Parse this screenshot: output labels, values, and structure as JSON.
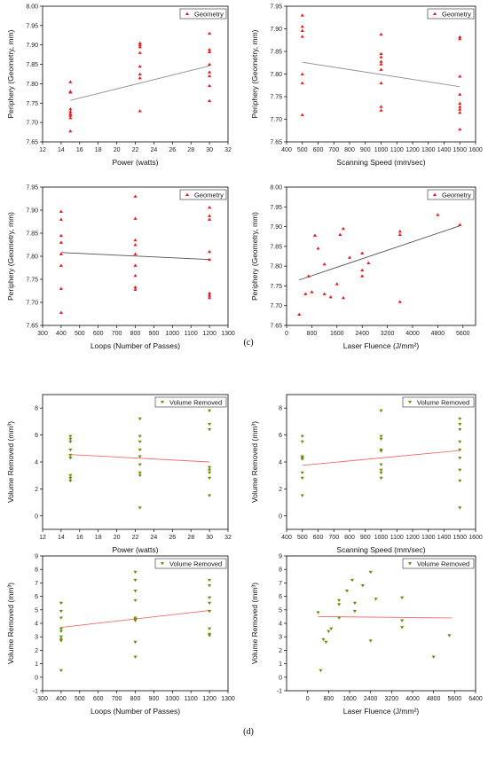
{
  "panel_labels": [
    "(c)",
    "(d)"
  ],
  "chart_data": [
    {
      "type": "scatter",
      "panel": "c",
      "xlabel": "Power (watts)",
      "ylabel": "Periphery (Geometry, mm)",
      "xlim": [
        12,
        32
      ],
      "ylim": [
        7.65,
        8.0
      ],
      "xticks": [
        12,
        14,
        16,
        18,
        20,
        22,
        24,
        26,
        28,
        30,
        32
      ],
      "yticks": [
        7.65,
        7.7,
        7.75,
        7.8,
        7.85,
        7.9,
        7.95,
        8.0
      ],
      "ytick_decimals": 2,
      "series": [
        {
          "name": "Geometry",
          "color": "#e8191c",
          "marker": "triangle-up",
          "x": [
            15,
            15,
            15,
            15,
            15,
            15,
            15,
            15,
            15,
            22.5,
            22.5,
            22.5,
            22.5,
            22.5,
            22.5,
            22.5,
            22.5,
            30,
            30,
            30,
            30,
            30,
            30,
            30,
            30
          ],
          "y": [
            7.805,
            7.78,
            7.778,
            7.735,
            7.728,
            7.722,
            7.718,
            7.712,
            7.678,
            7.905,
            7.9,
            7.895,
            7.88,
            7.845,
            7.825,
            7.815,
            7.73,
            7.93,
            7.888,
            7.882,
            7.85,
            7.83,
            7.82,
            7.795,
            7.756
          ]
        }
      ],
      "trendline": {
        "x": [
          15,
          30
        ],
        "y": [
          7.757,
          7.846
        ],
        "color": "#909090"
      },
      "legend": "top-right"
    },
    {
      "type": "scatter",
      "panel": "c",
      "xlabel": "Scanning Speed (mm/sec)",
      "ylabel": "Periphery (Geometry, mm)",
      "xlim": [
        400,
        1600
      ],
      "ylim": [
        7.65,
        7.95
      ],
      "xticks": [
        400,
        500,
        600,
        700,
        800,
        900,
        1000,
        1100,
        1200,
        1300,
        1400,
        1500,
        1600
      ],
      "yticks": [
        7.65,
        7.7,
        7.75,
        7.8,
        7.85,
        7.9,
        7.95
      ],
      "ytick_decimals": 2,
      "series": [
        {
          "name": "Geometry",
          "color": "#e8191c",
          "marker": "triangle-up",
          "x": [
            500,
            500,
            500,
            500,
            500,
            500,
            500,
            1000,
            1000,
            1000,
            1000,
            1000,
            1000,
            1000,
            1000,
            1000,
            1500,
            1500,
            1500,
            1500,
            1500,
            1500,
            1500,
            1500,
            1500
          ],
          "y": [
            7.93,
            7.905,
            7.896,
            7.883,
            7.8,
            7.78,
            7.71,
            7.888,
            7.845,
            7.838,
            7.828,
            7.822,
            7.81,
            7.78,
            7.728,
            7.72,
            7.882,
            7.878,
            7.795,
            7.755,
            7.735,
            7.728,
            7.722,
            7.715,
            7.678
          ]
        }
      ],
      "trendline": {
        "x": [
          500,
          1500
        ],
        "y": [
          7.826,
          7.772
        ],
        "color": "#909090"
      },
      "legend": "top-right"
    },
    {
      "type": "scatter",
      "panel": "c",
      "xlabel": "Loops (Number of Passes)",
      "ylabel": "Periphery (Geometry, mm)",
      "xlim": [
        300,
        1300
      ],
      "ylim": [
        7.65,
        7.95
      ],
      "xticks": [
        300,
        400,
        500,
        600,
        700,
        800,
        900,
        1000,
        1100,
        1200,
        1300
      ],
      "yticks": [
        7.65,
        7.7,
        7.75,
        7.8,
        7.85,
        7.9,
        7.95
      ],
      "ytick_decimals": 2,
      "series": [
        {
          "name": "Geometry",
          "color": "#e8191c",
          "marker": "triangle-up",
          "x": [
            400,
            400,
            400,
            400,
            400,
            400,
            400,
            400,
            800,
            800,
            800,
            800,
            800,
            800,
            800,
            800,
            800,
            1200,
            1200,
            1200,
            1200,
            1200,
            1200,
            1200,
            1200
          ],
          "y": [
            7.897,
            7.88,
            7.845,
            7.83,
            7.805,
            7.78,
            7.73,
            7.678,
            7.93,
            7.882,
            7.835,
            7.825,
            7.805,
            7.78,
            7.758,
            7.733,
            7.728,
            7.906,
            7.888,
            7.88,
            7.81,
            7.793,
            7.72,
            7.715,
            7.71
          ]
        }
      ],
      "trendline": {
        "x": [
          400,
          1200
        ],
        "y": [
          7.808,
          7.793
        ],
        "color": "#505050"
      },
      "legend": "top-right"
    },
    {
      "type": "scatter",
      "panel": "c",
      "xlabel": "Laser Fluence (J/mm²)",
      "ylabel": "Periphery (Geometry, mm)",
      "xlim": [
        0,
        6000
      ],
      "ylim": [
        7.65,
        8.0
      ],
      "xticks": [
        0,
        800,
        1600,
        2400,
        3200,
        4000,
        4800,
        5600
      ],
      "yticks": [
        7.65,
        7.7,
        7.75,
        7.8,
        7.85,
        7.9,
        7.95,
        8.0
      ],
      "ytick_decimals": 2,
      "series": [
        {
          "name": "Geometry",
          "color": "#e8191c",
          "marker": "triangle-up",
          "x": [
            400,
            600,
            700,
            800,
            900,
            1000,
            1200,
            1200,
            1400,
            1600,
            1700,
            1800,
            1800,
            2000,
            2400,
            2400,
            2400,
            2600,
            3600,
            3600,
            3600,
            4800,
            5500
          ],
          "y": [
            7.678,
            7.73,
            7.775,
            7.735,
            7.878,
            7.845,
            7.73,
            7.805,
            7.722,
            7.755,
            7.88,
            7.895,
            7.72,
            7.822,
            7.833,
            7.79,
            7.775,
            7.808,
            7.888,
            7.88,
            7.71,
            7.93,
            7.905
          ]
        }
      ],
      "trendline": {
        "x": [
          400,
          5500
        ],
        "y": [
          7.765,
          7.902
        ],
        "color": "#505050"
      },
      "legend": "top-right"
    },
    {
      "type": "scatter",
      "panel": "d",
      "xlabel": "Power (watts)",
      "ylabel": "Volume Removed (mm³)",
      "xlim": [
        12,
        32
      ],
      "ylim": [
        -1,
        9
      ],
      "xticks": [
        12,
        14,
        16,
        18,
        20,
        22,
        24,
        26,
        28,
        30,
        32
      ],
      "yticks": [
        0,
        2,
        4,
        6,
        8
      ],
      "ytick_decimals": 0,
      "series": [
        {
          "name": "Volume Removed",
          "color": "#6b8e0b",
          "marker": "triangle-down",
          "x": [
            15,
            15,
            15,
            15,
            15,
            15,
            15,
            15,
            15,
            22.5,
            22.5,
            22.5,
            22.5,
            22.5,
            22.5,
            22.5,
            22.5,
            22.5,
            30,
            30,
            30,
            30,
            30,
            30,
            30,
            30
          ],
          "y": [
            5.9,
            5.7,
            5.5,
            4.9,
            4.5,
            4.3,
            3.0,
            2.8,
            2.6,
            7.2,
            5.9,
            5.5,
            4.9,
            4.4,
            3.8,
            3.2,
            3.0,
            0.6,
            7.8,
            6.8,
            6.4,
            3.6,
            3.4,
            3.2,
            2.8,
            1.5
          ]
        }
      ],
      "trendline": {
        "x": [
          15,
          30
        ],
        "y": [
          4.55,
          4.0
        ],
        "color": "#f26b6b"
      },
      "legend": "top-right"
    },
    {
      "type": "scatter",
      "panel": "d",
      "xlabel": "Scanning Speed (mm/sec)",
      "ylabel": "Volume Removed (mm³)",
      "xlim": [
        400,
        1600
      ],
      "ylim": [
        -1,
        9
      ],
      "xticks": [
        400,
        500,
        600,
        700,
        800,
        900,
        1000,
        1100,
        1200,
        1300,
        1400,
        1500,
        1600
      ],
      "yticks": [
        0,
        2,
        4,
        6,
        8
      ],
      "ytick_decimals": 0,
      "series": [
        {
          "name": "Volume Removed",
          "color": "#6b8e0b",
          "marker": "triangle-down",
          "x": [
            500,
            500,
            500,
            500,
            500,
            500,
            500,
            500,
            1000,
            1000,
            1000,
            1000,
            1000,
            1000,
            1000,
            1000,
            1000,
            1500,
            1500,
            1500,
            1500,
            1500,
            1500,
            1500,
            1500,
            1500
          ],
          "y": [
            5.9,
            5.5,
            4.4,
            4.3,
            4.2,
            3.2,
            2.8,
            1.5,
            7.8,
            5.9,
            5.7,
            4.9,
            4.8,
            3.8,
            3.4,
            3.2,
            2.8,
            7.2,
            6.8,
            6.4,
            5.5,
            4.9,
            4.3,
            3.4,
            2.6,
            0.6
          ]
        }
      ],
      "trendline": {
        "x": [
          500,
          1500
        ],
        "y": [
          3.75,
          4.85
        ],
        "color": "#f26b6b"
      },
      "legend": "top-right"
    },
    {
      "type": "scatter",
      "panel": "d",
      "xlabel": "Loops (Number of Passes)",
      "ylabel": "Volume Removed (mm³)",
      "xlim": [
        300,
        1300
      ],
      "ylim": [
        -1,
        9
      ],
      "xticks": [
        300,
        400,
        500,
        600,
        700,
        800,
        900,
        1000,
        1100,
        1200,
        1300
      ],
      "yticks": [
        -1,
        0,
        1,
        2,
        3,
        4,
        5,
        6,
        7,
        8,
        9
      ],
      "ytick_decimals": 0,
      "series": [
        {
          "name": "Volume Removed",
          "color": "#6b8e0b",
          "marker": "triangle-down",
          "x": [
            400,
            400,
            400,
            400,
            400,
            400,
            400,
            400,
            400,
            800,
            800,
            800,
            800,
            800,
            800,
            800,
            800,
            800,
            1200,
            1200,
            1200,
            1200,
            1200,
            1200,
            1200,
            1200
          ],
          "y": [
            5.5,
            4.9,
            4.4,
            3.6,
            3.4,
            3.0,
            2.8,
            2.7,
            0.5,
            7.8,
            7.2,
            6.4,
            5.7,
            4.4,
            4.3,
            4.2,
            2.6,
            1.5,
            7.2,
            6.8,
            5.9,
            5.5,
            4.9,
            3.6,
            3.2,
            3.1
          ]
        }
      ],
      "trendline": {
        "x": [
          400,
          1200
        ],
        "y": [
          3.7,
          4.95
        ],
        "color": "#f26b6b"
      },
      "legend": "top-right"
    },
    {
      "type": "scatter",
      "panel": "d",
      "xlabel": "Laser Fluence (J/mm²)",
      "ylabel": "Volume Removed (mm³)",
      "xlim": [
        -800,
        6400
      ],
      "ylim": [
        -1,
        9
      ],
      "xticks": [
        0,
        800,
        1600,
        2400,
        3200,
        4000,
        4800,
        5600,
        6400
      ],
      "yticks": [
        -1,
        0,
        1,
        2,
        3,
        4,
        5,
        6,
        7,
        8,
        9
      ],
      "ytick_decimals": 0,
      "series": [
        {
          "name": "Volume Removed",
          "color": "#6b8e0b",
          "marker": "triangle-down",
          "x": [
            400,
            500,
            600,
            700,
            800,
            900,
            1200,
            1200,
            1200,
            1500,
            1700,
            1800,
            1800,
            2100,
            2400,
            2400,
            2600,
            3600,
            3600,
            3600,
            4800,
            5400
          ],
          "y": [
            4.8,
            0.5,
            2.8,
            2.6,
            3.4,
            3.6,
            5.7,
            5.4,
            4.4,
            6.4,
            7.2,
            5.5,
            4.9,
            6.8,
            7.8,
            2.7,
            5.8,
            5.9,
            4.2,
            3.7,
            1.5,
            3.1
          ]
        }
      ],
      "trendline": {
        "x": [
          400,
          5500
        ],
        "y": [
          4.5,
          4.4
        ],
        "color": "#f26b6b"
      },
      "legend": "top-right"
    }
  ]
}
